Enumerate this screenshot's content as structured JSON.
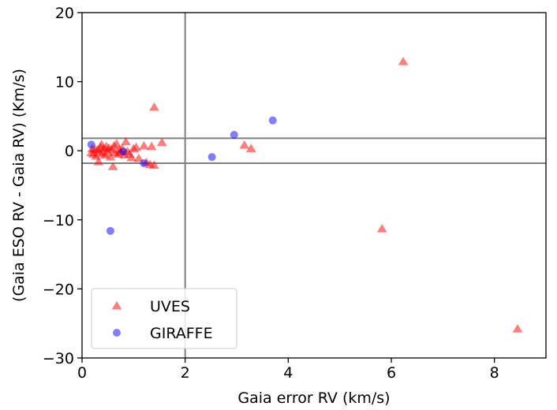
{
  "chart_data": {
    "type": "scatter",
    "xlabel": "Gaia error RV (km/s)",
    "ylabel": "(Gaia ESO RV - Gaia RV) (Km/s)",
    "xlim": [
      0,
      9
    ],
    "ylim": [
      -30,
      20
    ],
    "xticks": [
      0,
      2,
      4,
      6,
      8
    ],
    "yticks": [
      -30,
      -20,
      -10,
      0,
      10,
      20
    ],
    "xtick_labels": [
      "0",
      "2",
      "4",
      "6",
      "8"
    ],
    "ytick_labels": [
      "−30",
      "−20",
      "−10",
      "0",
      "10",
      "20"
    ],
    "grid": false,
    "legend_position": "lower-left",
    "reference_lines": {
      "vertical_x": [
        2
      ],
      "horizontal_y": [
        1.8,
        -1.8
      ],
      "color": "#808080"
    },
    "series": [
      {
        "name": "UVES",
        "marker": "triangle",
        "color": "#ff0000",
        "points": [
          [
            0.18,
            -0.3
          ],
          [
            0.2,
            0.3
          ],
          [
            0.22,
            -0.5
          ],
          [
            0.25,
            0.2
          ],
          [
            0.27,
            -0.8
          ],
          [
            0.3,
            0.1
          ],
          [
            0.32,
            -1.6
          ],
          [
            0.34,
            -0.2
          ],
          [
            0.36,
            0.5
          ],
          [
            0.38,
            0.9
          ],
          [
            0.4,
            -0.4
          ],
          [
            0.42,
            0.3
          ],
          [
            0.45,
            -0.6
          ],
          [
            0.47,
            0.6
          ],
          [
            0.5,
            -0.1
          ],
          [
            0.52,
            0.4
          ],
          [
            0.55,
            -0.9
          ],
          [
            0.57,
            0.2
          ],
          [
            0.6,
            -2.3
          ],
          [
            0.62,
            0.7
          ],
          [
            0.64,
            -0.3
          ],
          [
            0.67,
            1.0
          ],
          [
            0.7,
            -0.5
          ],
          [
            0.72,
            0.1
          ],
          [
            0.75,
            -0.2
          ],
          [
            0.78,
            0.3
          ],
          [
            0.82,
            -0.6
          ],
          [
            0.85,
            1.3
          ],
          [
            0.88,
            -0.1
          ],
          [
            0.92,
            -0.5
          ],
          [
            0.96,
            -1.0
          ],
          [
            1.0,
            0.3
          ],
          [
            1.05,
            0.5
          ],
          [
            1.1,
            -1.1
          ],
          [
            1.2,
            0.7
          ],
          [
            1.25,
            -1.7
          ],
          [
            1.32,
            -2.0
          ],
          [
            1.35,
            0.6
          ],
          [
            1.4,
            -2.1
          ],
          [
            1.4,
            6.3
          ],
          [
            1.55,
            1.2
          ],
          [
            3.15,
            0.8
          ],
          [
            3.28,
            0.3
          ],
          [
            5.82,
            -11.3
          ],
          [
            6.23,
            12.9
          ],
          [
            8.45,
            -25.8
          ]
        ]
      },
      {
        "name": "GIRAFFE",
        "marker": "circle",
        "color": "#0000ff",
        "points": [
          [
            0.18,
            0.9
          ],
          [
            0.55,
            -11.6
          ],
          [
            0.8,
            -0.1
          ],
          [
            1.2,
            -1.8
          ],
          [
            2.52,
            -0.9
          ],
          [
            2.95,
            2.3
          ],
          [
            3.7,
            4.4
          ]
        ]
      }
    ]
  }
}
